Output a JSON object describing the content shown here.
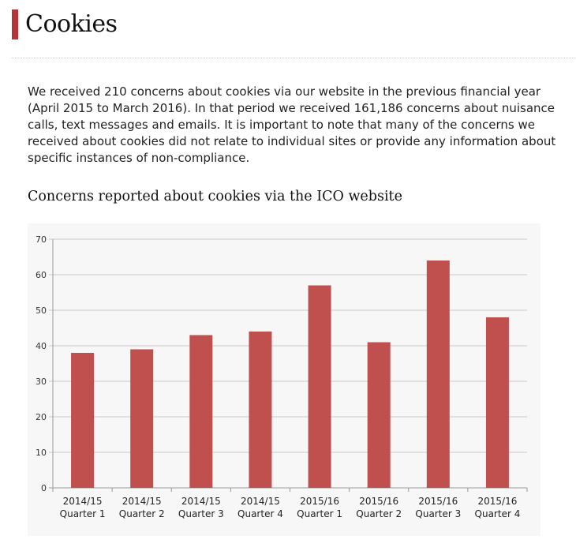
{
  "page": {
    "heading": "Cookies",
    "intro": "We received 210 concerns about cookies via our website in the previous financial year (April 2015 to March 2016). In that period we received 161,186 concerns about nuisance calls, text messages and emails. It is important to note that many of the concerns we received about cookies did not relate to individual sites or provide any information about specific instances of non-compliance."
  },
  "chart_data": {
    "type": "bar",
    "title": "Concerns reported about cookies via the ICO website",
    "categories": [
      [
        "2014/15",
        "Quarter 1"
      ],
      [
        "2014/15",
        "Quarter 2"
      ],
      [
        "2014/15",
        "Quarter 3"
      ],
      [
        "2014/15",
        "Quarter 4"
      ],
      [
        "2015/16",
        "Quarter 1"
      ],
      [
        "2015/16",
        "Quarter 2"
      ],
      [
        "2015/16",
        "Quarter 3"
      ],
      [
        "2015/16",
        "Quarter 4"
      ]
    ],
    "values": [
      38,
      39,
      43,
      44,
      57,
      41,
      64,
      48
    ],
    "ylim": [
      0,
      70
    ],
    "yticks": [
      0,
      10,
      20,
      30,
      40,
      50,
      60,
      70
    ],
    "grid": true,
    "legend": "none",
    "bar_color": "#c0504d",
    "grid_color": "#c9c9c9"
  }
}
